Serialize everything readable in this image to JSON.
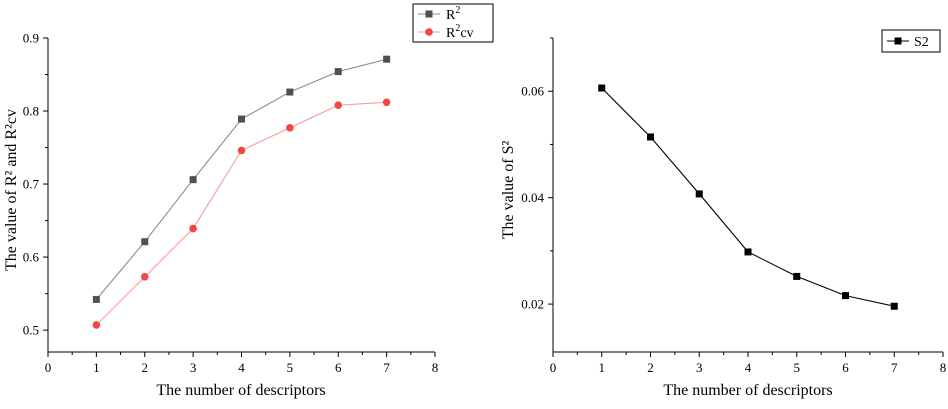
{
  "chart_data": [
    {
      "type": "line",
      "xlabel": "The number of descriptors",
      "ylabel": "The value of R² and R²cv",
      "xlim": [
        0,
        8
      ],
      "ylim": [
        0.47,
        0.9
      ],
      "x_ticks": [
        "0",
        "1",
        "2",
        "3",
        "4",
        "5",
        "6",
        "7",
        "8"
      ],
      "y_ticks": [
        "0.5",
        "0.6",
        "0.7",
        "0.8",
        "0.9"
      ],
      "legend_position": "top-right",
      "grid": false,
      "x": [
        1,
        2,
        3,
        4,
        5,
        6,
        7
      ],
      "series": [
        {
          "name": "R²",
          "name_base": "R",
          "name_sup": "2",
          "name_suffix": "",
          "marker": "square",
          "color": "#505050",
          "line_color": "#8c8c8c",
          "values": [
            0.542,
            0.621,
            0.706,
            0.789,
            0.826,
            0.854,
            0.871
          ]
        },
        {
          "name": "R²cv",
          "name_base": "R",
          "name_sup": "2",
          "name_suffix": "cv",
          "marker": "circle",
          "color": "#f04848",
          "line_color": "#f2a0a0",
          "values": [
            0.507,
            0.573,
            0.639,
            0.746,
            0.777,
            0.808,
            0.812
          ]
        }
      ]
    },
    {
      "type": "line",
      "xlabel": "The number of descriptors",
      "ylabel": "The value of S²",
      "xlim": [
        0,
        8
      ],
      "ylim": [
        0.011,
        0.07
      ],
      "x_ticks": [
        "0",
        "1",
        "2",
        "3",
        "4",
        "5",
        "6",
        "7",
        "8"
      ],
      "y_ticks": [
        "0.02",
        "0.04",
        "0.06"
      ],
      "legend_position": "top-right",
      "grid": false,
      "x": [
        1,
        2,
        3,
        4,
        5,
        6,
        7
      ],
      "series": [
        {
          "name": "S2",
          "marker": "square",
          "color": "#000000",
          "line_color": "#000000",
          "values": [
            0.0606,
            0.0514,
            0.0407,
            0.0298,
            0.0252,
            0.0216,
            0.0196
          ]
        }
      ]
    }
  ]
}
